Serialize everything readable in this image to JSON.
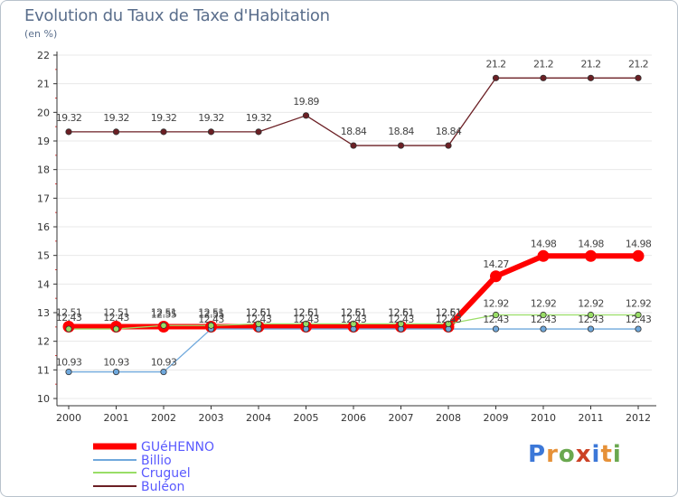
{
  "header": {
    "title": "Evolution du Taux de Taxe d'Habitation",
    "subtitle": "(en %)"
  },
  "brand": {
    "logo": "Proxiti",
    "letters": [
      "P",
      "r",
      "o",
      "x",
      "i",
      "t",
      "i"
    ]
  },
  "colors": {
    "axis": "#333333",
    "grid": "#e8e8e8",
    "label": "#444444",
    "legend_text": "#5a5aff"
  },
  "chart_data": {
    "type": "line",
    "title": "Evolution du Taux de Taxe d'Habitation",
    "ylabel": "(en %)",
    "xlabel": "",
    "ylim": [
      10,
      22
    ],
    "yticks": [
      10,
      11,
      12,
      13,
      14,
      15,
      16,
      17,
      18,
      19,
      20,
      21,
      22
    ],
    "categories": [
      "2000",
      "2001",
      "2002",
      "2003",
      "2004",
      "2005",
      "2006",
      "2007",
      "2008",
      "2009",
      "2010",
      "2011",
      "2012"
    ],
    "series": [
      {
        "name": "GUéHENNO",
        "color": "#ff0000",
        "values": [
          12.51,
          12.51,
          12.51,
          12.51,
          12.51,
          12.51,
          12.51,
          12.51,
          12.51,
          14.27,
          14.98,
          14.98,
          14.98
        ],
        "labels": [
          "12.51",
          "12.51",
          "12.51",
          "12.51",
          "12.51",
          "12.51",
          "12.51",
          "12.51",
          "12.51",
          "14.27",
          "14.98",
          "14.98",
          "14.98"
        ]
      },
      {
        "name": "Billio",
        "color": "#6fa8dc",
        "values": [
          10.93,
          10.93,
          10.93,
          12.43,
          12.43,
          12.43,
          12.43,
          12.43,
          12.43,
          12.43,
          12.43,
          12.43,
          12.43
        ],
        "labels": [
          "10.93",
          "10.93",
          "10.93",
          "12.43",
          "12.43",
          "12.43",
          "12.43",
          "12.43",
          "12.43",
          "12.43",
          "12.43",
          "12.43",
          "12.43"
        ]
      },
      {
        "name": "Cruguel",
        "color": "#99dd66",
        "values": [
          12.43,
          12.43,
          12.55,
          12.55,
          12.61,
          12.61,
          12.61,
          12.61,
          12.61,
          12.92,
          12.92,
          12.92,
          12.92
        ],
        "labels": [
          "12.43",
          "12.43",
          "12.55",
          "12.55",
          "12.61",
          "12.61",
          "12.61",
          "12.61",
          "12.61",
          "12.92",
          "12.92",
          "12.92",
          "12.92"
        ]
      },
      {
        "name": "Buléon",
        "color": "#6b1f24",
        "values": [
          19.32,
          19.32,
          19.32,
          19.32,
          19.32,
          19.89,
          18.84,
          18.84,
          18.84,
          21.2,
          21.2,
          21.2,
          21.2
        ],
        "labels": [
          "19.32",
          "19.32",
          "19.32",
          "19.32",
          "19.32",
          "19.89",
          "18.84",
          "18.84",
          "18.84",
          "21.2",
          "21.2",
          "21.2",
          "21.2"
        ]
      }
    ]
  }
}
